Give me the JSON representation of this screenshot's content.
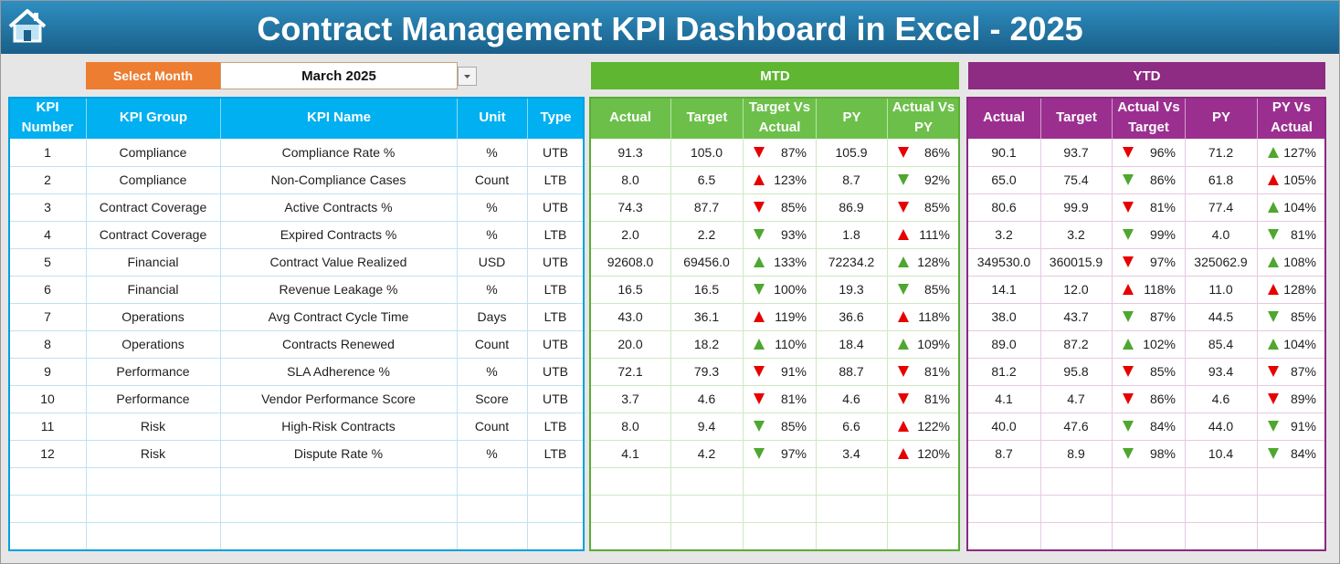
{
  "header": {
    "title": "Contract Management KPI Dashboard in Excel - 2025"
  },
  "month_selector": {
    "label": "Select Month",
    "value": "March 2025"
  },
  "sections": {
    "mtd": "MTD",
    "ytd": "YTD"
  },
  "table": {
    "columns": [
      "KPI Number",
      "KPI Group",
      "KPI Name",
      "Unit",
      "Type",
      "Actual",
      "Target",
      "Target Vs Actual",
      "PY",
      "Actual Vs PY",
      "Actual",
      "Target",
      "Actual Vs Target",
      "PY",
      "PY Vs Actual"
    ],
    "rows": [
      [
        "1",
        "Compliance",
        "Compliance Rate %",
        "%",
        "UTB",
        "91.3",
        "105.0",
        {
          "arrow": "down",
          "color": "red",
          "text": "87%"
        },
        "105.9",
        {
          "arrow": "down",
          "color": "red",
          "text": "86%"
        },
        "90.1",
        "93.7",
        {
          "arrow": "down",
          "color": "red",
          "text": "96%"
        },
        "71.2",
        {
          "arrow": "up",
          "color": "green",
          "text": "127%"
        }
      ],
      [
        "2",
        "Compliance",
        "Non-Compliance Cases",
        "Count",
        "LTB",
        "8.0",
        "6.5",
        {
          "arrow": "up",
          "color": "red",
          "text": "123%"
        },
        "8.7",
        {
          "arrow": "down",
          "color": "green",
          "text": "92%"
        },
        "65.0",
        "75.4",
        {
          "arrow": "down",
          "color": "green",
          "text": "86%"
        },
        "61.8",
        {
          "arrow": "up",
          "color": "red",
          "text": "105%"
        }
      ],
      [
        "3",
        "Contract Coverage",
        "Active Contracts %",
        "%",
        "UTB",
        "74.3",
        "87.7",
        {
          "arrow": "down",
          "color": "red",
          "text": "85%"
        },
        "86.9",
        {
          "arrow": "down",
          "color": "red",
          "text": "85%"
        },
        "80.6",
        "99.9",
        {
          "arrow": "down",
          "color": "red",
          "text": "81%"
        },
        "77.4",
        {
          "arrow": "up",
          "color": "green",
          "text": "104%"
        }
      ],
      [
        "4",
        "Contract Coverage",
        "Expired Contracts %",
        "%",
        "LTB",
        "2.0",
        "2.2",
        {
          "arrow": "down",
          "color": "green",
          "text": "93%"
        },
        "1.8",
        {
          "arrow": "up",
          "color": "red",
          "text": "111%"
        },
        "3.2",
        "3.2",
        {
          "arrow": "down",
          "color": "green",
          "text": "99%"
        },
        "4.0",
        {
          "arrow": "down",
          "color": "green",
          "text": "81%"
        }
      ],
      [
        "5",
        "Financial",
        "Contract Value Realized",
        "USD",
        "UTB",
        "92608.0",
        "69456.0",
        {
          "arrow": "up",
          "color": "green",
          "text": "133%"
        },
        "72234.2",
        {
          "arrow": "up",
          "color": "green",
          "text": "128%"
        },
        "349530.0",
        "360015.9",
        {
          "arrow": "down",
          "color": "red",
          "text": "97%"
        },
        "325062.9",
        {
          "arrow": "up",
          "color": "green",
          "text": "108%"
        }
      ],
      [
        "6",
        "Financial",
        "Revenue Leakage %",
        "%",
        "LTB",
        "16.5",
        "16.5",
        {
          "arrow": "down",
          "color": "green",
          "text": "100%"
        },
        "19.3",
        {
          "arrow": "down",
          "color": "green",
          "text": "85%"
        },
        "14.1",
        "12.0",
        {
          "arrow": "up",
          "color": "red",
          "text": "118%"
        },
        "11.0",
        {
          "arrow": "up",
          "color": "red",
          "text": "128%"
        }
      ],
      [
        "7",
        "Operations",
        "Avg Contract Cycle Time",
        "Days",
        "LTB",
        "43.0",
        "36.1",
        {
          "arrow": "up",
          "color": "red",
          "text": "119%"
        },
        "36.6",
        {
          "arrow": "up",
          "color": "red",
          "text": "118%"
        },
        "38.0",
        "43.7",
        {
          "arrow": "down",
          "color": "green",
          "text": "87%"
        },
        "44.5",
        {
          "arrow": "down",
          "color": "green",
          "text": "85%"
        }
      ],
      [
        "8",
        "Operations",
        "Contracts Renewed",
        "Count",
        "UTB",
        "20.0",
        "18.2",
        {
          "arrow": "up",
          "color": "green",
          "text": "110%"
        },
        "18.4",
        {
          "arrow": "up",
          "color": "green",
          "text": "109%"
        },
        "89.0",
        "87.2",
        {
          "arrow": "up",
          "color": "green",
          "text": "102%"
        },
        "85.4",
        {
          "arrow": "up",
          "color": "green",
          "text": "104%"
        }
      ],
      [
        "9",
        "Performance",
        "SLA Adherence %",
        "%",
        "UTB",
        "72.1",
        "79.3",
        {
          "arrow": "down",
          "color": "red",
          "text": "91%"
        },
        "88.7",
        {
          "arrow": "down",
          "color": "red",
          "text": "81%"
        },
        "81.2",
        "95.8",
        {
          "arrow": "down",
          "color": "red",
          "text": "85%"
        },
        "93.4",
        {
          "arrow": "down",
          "color": "red",
          "text": "87%"
        }
      ],
      [
        "10",
        "Performance",
        "Vendor Performance Score",
        "Score",
        "UTB",
        "3.7",
        "4.6",
        {
          "arrow": "down",
          "color": "red",
          "text": "81%"
        },
        "4.6",
        {
          "arrow": "down",
          "color": "red",
          "text": "81%"
        },
        "4.1",
        "4.7",
        {
          "arrow": "down",
          "color": "red",
          "text": "86%"
        },
        "4.6",
        {
          "arrow": "down",
          "color": "red",
          "text": "89%"
        }
      ],
      [
        "11",
        "Risk",
        "High-Risk Contracts",
        "Count",
        "LTB",
        "8.0",
        "9.4",
        {
          "arrow": "down",
          "color": "green",
          "text": "85%"
        },
        "6.6",
        {
          "arrow": "up",
          "color": "red",
          "text": "122%"
        },
        "40.0",
        "47.6",
        {
          "arrow": "down",
          "color": "green",
          "text": "84%"
        },
        "44.0",
        {
          "arrow": "down",
          "color": "green",
          "text": "91%"
        }
      ],
      [
        "12",
        "Risk",
        "Dispute Rate %",
        "%",
        "LTB",
        "4.1",
        "4.2",
        {
          "arrow": "down",
          "color": "green",
          "text": "97%"
        },
        "3.4",
        {
          "arrow": "up",
          "color": "red",
          "text": "120%"
        },
        "8.7",
        "8.9",
        {
          "arrow": "down",
          "color": "green",
          "text": "98%"
        },
        "10.4",
        {
          "arrow": "down",
          "color": "green",
          "text": "84%"
        }
      ]
    ]
  }
}
